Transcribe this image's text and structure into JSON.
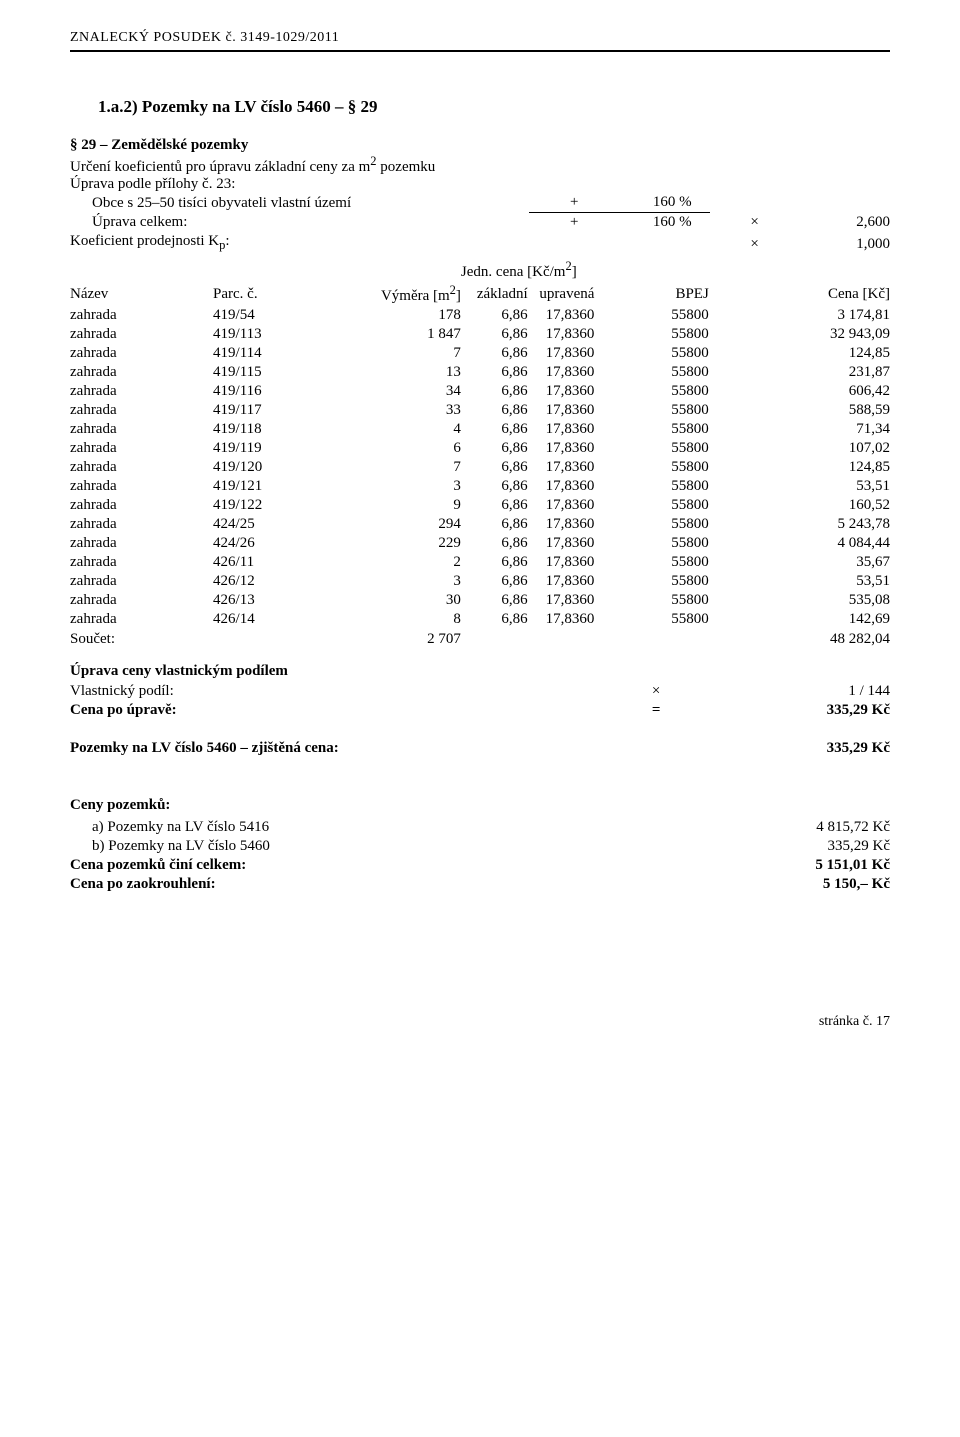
{
  "header": {
    "text": "ZNALECKÝ  POSUDEK č. 3149-1029/2011"
  },
  "section": {
    "title": "1.a.2)  Pozemky na LV číslo 5460  – § 29"
  },
  "sub_heading": "§ 29 – Zemědělské pozemky",
  "definition_line_html": "Určení koeficientů pro úpravu základní ceny za m<sup>2</sup> pozemku",
  "adjustment_intro": "Úprava podle přílohy č. 23:",
  "adjustments": {
    "rows": [
      {
        "label": "Obce s 25–50 tisíci obyvateli vlastní území",
        "sign": "+",
        "val": "160 %",
        "op": "",
        "res": ""
      },
      {
        "label": "Úprava celkem:",
        "sign": "+",
        "val": "160 %",
        "op": "×",
        "res": "2,600",
        "rule": true
      }
    ],
    "kp": {
      "label": "Koeficient prodejnosti K",
      "sub": "p",
      "sign": "",
      "val": "",
      "op": "×",
      "res": "1,000"
    }
  },
  "table": {
    "unit_header_html": "Jedn. cena [Kč/m<sup>2</sup>]",
    "headers": {
      "name": "Název",
      "parc": "Parc. č.",
      "area_html": "Výměra [m<sup>2</sup>]",
      "base": "základní",
      "upr": "upravená",
      "bpej": "BPEJ",
      "cena": "Cena [Kč]"
    },
    "rows": [
      {
        "n": "zahrada",
        "p": "419/54",
        "a": "178",
        "b": "6,86",
        "u": "17,8360",
        "j": "55800",
        "c": "3 174,81"
      },
      {
        "n": "zahrada",
        "p": "419/113",
        "a": "1 847",
        "b": "6,86",
        "u": "17,8360",
        "j": "55800",
        "c": "32 943,09"
      },
      {
        "n": "zahrada",
        "p": "419/114",
        "a": "7",
        "b": "6,86",
        "u": "17,8360",
        "j": "55800",
        "c": "124,85"
      },
      {
        "n": "zahrada",
        "p": "419/115",
        "a": "13",
        "b": "6,86",
        "u": "17,8360",
        "j": "55800",
        "c": "231,87"
      },
      {
        "n": "zahrada",
        "p": "419/116",
        "a": "34",
        "b": "6,86",
        "u": "17,8360",
        "j": "55800",
        "c": "606,42"
      },
      {
        "n": "zahrada",
        "p": "419/117",
        "a": "33",
        "b": "6,86",
        "u": "17,8360",
        "j": "55800",
        "c": "588,59"
      },
      {
        "n": "zahrada",
        "p": "419/118",
        "a": "4",
        "b": "6,86",
        "u": "17,8360",
        "j": "55800",
        "c": "71,34"
      },
      {
        "n": "zahrada",
        "p": "419/119",
        "a": "6",
        "b": "6,86",
        "u": "17,8360",
        "j": "55800",
        "c": "107,02"
      },
      {
        "n": "zahrada",
        "p": "419/120",
        "a": "7",
        "b": "6,86",
        "u": "17,8360",
        "j": "55800",
        "c": "124,85"
      },
      {
        "n": "zahrada",
        "p": "419/121",
        "a": "3",
        "b": "6,86",
        "u": "17,8360",
        "j": "55800",
        "c": "53,51"
      },
      {
        "n": "zahrada",
        "p": "419/122",
        "a": "9",
        "b": "6,86",
        "u": "17,8360",
        "j": "55800",
        "c": "160,52"
      },
      {
        "n": "zahrada",
        "p": "424/25",
        "a": "294",
        "b": "6,86",
        "u": "17,8360",
        "j": "55800",
        "c": "5 243,78"
      },
      {
        "n": "zahrada",
        "p": "424/26",
        "a": "229",
        "b": "6,86",
        "u": "17,8360",
        "j": "55800",
        "c": "4 084,44"
      },
      {
        "n": "zahrada",
        "p": "426/11",
        "a": "2",
        "b": "6,86",
        "u": "17,8360",
        "j": "55800",
        "c": "35,67"
      },
      {
        "n": "zahrada",
        "p": "426/12",
        "a": "3",
        "b": "6,86",
        "u": "17,8360",
        "j": "55800",
        "c": "53,51"
      },
      {
        "n": "zahrada",
        "p": "426/13",
        "a": "30",
        "b": "6,86",
        "u": "17,8360",
        "j": "55800",
        "c": "535,08"
      },
      {
        "n": "zahrada",
        "p": "426/14",
        "a": "8",
        "b": "6,86",
        "u": "17,8360",
        "j": "55800",
        "c": "142,69"
      }
    ],
    "sum": {
      "label": "Součet:",
      "area": "2 707",
      "cena": "48 282,04"
    }
  },
  "share": {
    "heading": "Úprava ceny vlastnickým podílem",
    "podil": {
      "label": "Vlastnický podíl:",
      "op": "×",
      "val": "1 / 144"
    },
    "result": {
      "label": "Cena po úpravě:",
      "op": "=",
      "val": "335,29 Kč"
    }
  },
  "determined": {
    "label": "Pozemky na LV číslo 5460 – zjištěná cena:",
    "val": "335,29 Kč"
  },
  "summary": {
    "heading": "Ceny pozemků:",
    "rows": [
      {
        "label": "a)  Pozemky na LV číslo 5416",
        "val": "4 815,72 Kč",
        "indent": true
      },
      {
        "label": "b)  Pozemky na LV číslo 5460",
        "val": "335,29 Kč",
        "indent": true
      },
      {
        "label": "Cena pozemků činí celkem:",
        "val": "5 151,01 Kč",
        "bold": true
      },
      {
        "label": "Cena po zaokrouhlení:",
        "val": "5 150,– Kč",
        "bold": true
      }
    ]
  },
  "footer": {
    "text": "stránka č. 17"
  }
}
